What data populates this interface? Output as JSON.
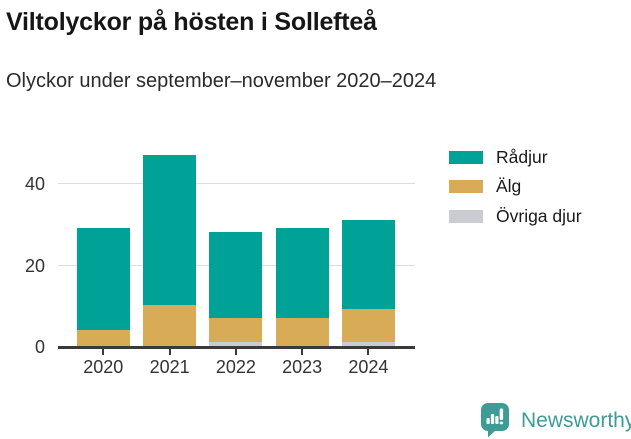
{
  "header": {
    "title": "Viltolyckor på hösten i Sollefteå",
    "subtitle": "Olyckor under september–november 2020–2024"
  },
  "chart_data": {
    "type": "bar",
    "stacked": true,
    "title": "Viltolyckor på hösten i Sollefteå",
    "subtitle": "Olyckor under september–november 2020–2024",
    "categories": [
      "2020",
      "2021",
      "2022",
      "2023",
      "2024"
    ],
    "series": [
      {
        "name": "Rådjur",
        "color": "#00a298",
        "values": [
          25,
          37,
          21,
          22,
          22
        ]
      },
      {
        "name": "Älg",
        "color": "#d8ab57",
        "values": [
          4,
          10,
          6,
          7,
          8
        ]
      },
      {
        "name": "Övriga djur",
        "color": "#cbccd1",
        "values": [
          0,
          0,
          1,
          0,
          1
        ]
      }
    ],
    "totals": [
      29,
      47,
      28,
      29,
      31
    ],
    "stack_order_bottom_to_top": [
      "Övriga djur",
      "Älg",
      "Rådjur"
    ],
    "y_ticks": [
      0,
      20,
      40
    ],
    "ylim": [
      0,
      53
    ],
    "xlabel": "",
    "ylabel": "",
    "grid": "horizontal",
    "legend_position": "right",
    "colors": {
      "axis": "#3a3a3a",
      "gridline": "#dddddd",
      "tick_label": "#333333"
    }
  },
  "footer": {
    "brand": "Newsworthy",
    "brand_color": "#3d9c95"
  }
}
